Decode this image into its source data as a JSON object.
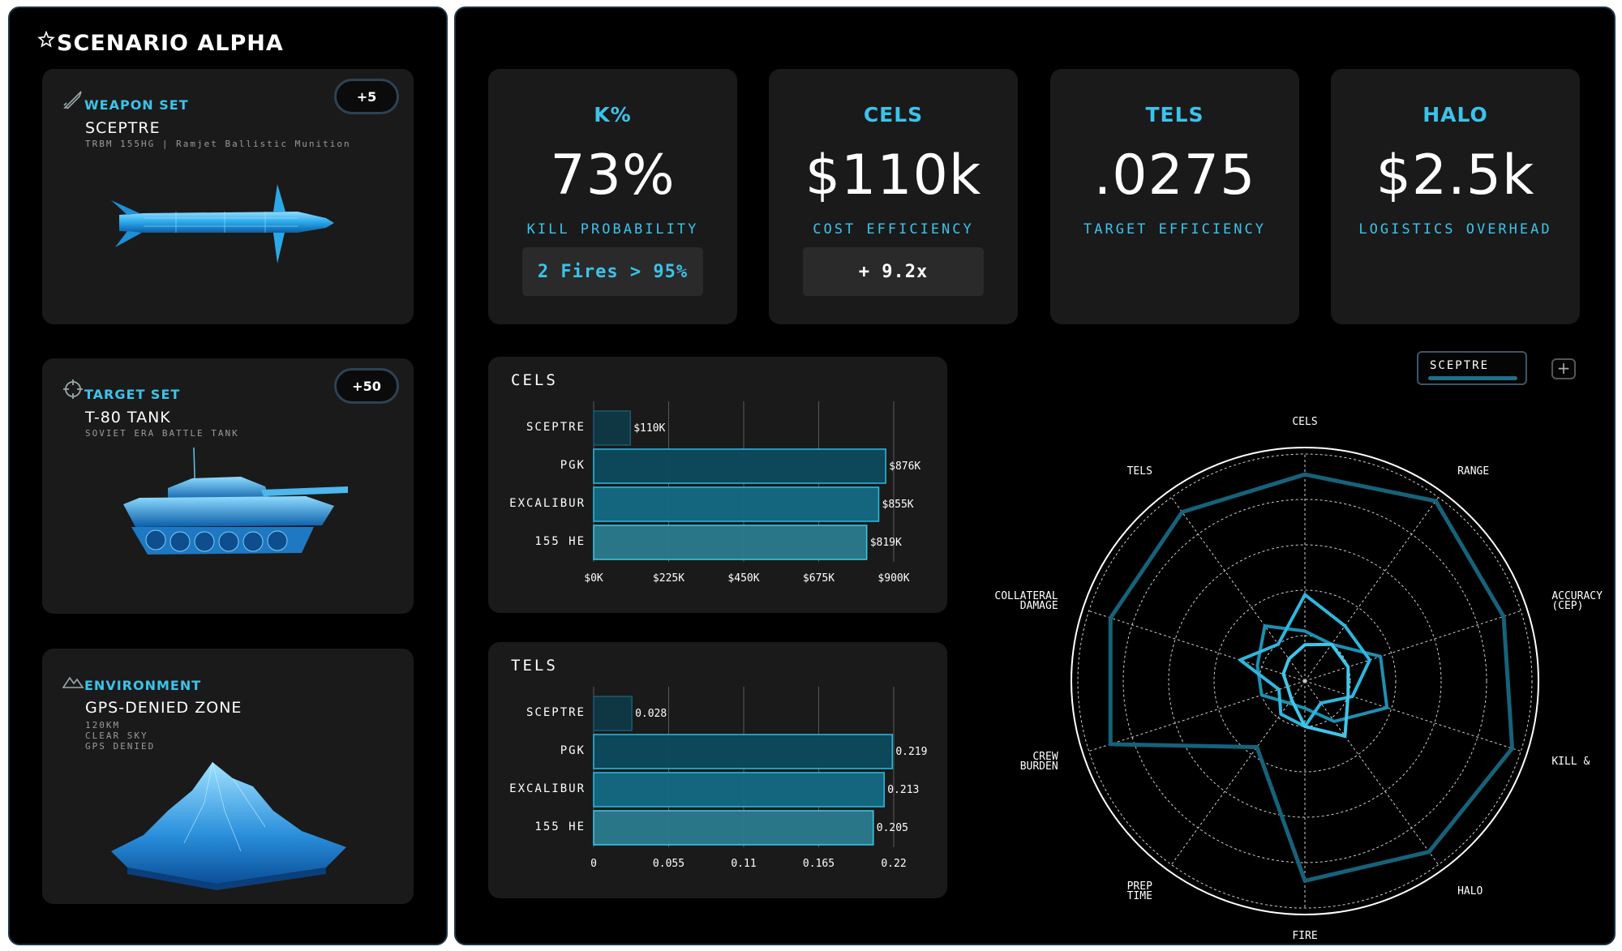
{
  "scenario": {
    "title": "SCENARIO ALPHA",
    "icon": "star-icon"
  },
  "sidebar": {
    "weapon": {
      "label": "WEAPON SET",
      "icon": "missile-icon",
      "badge": "+5",
      "name": "SCEPTRE",
      "sub": "TRBM 155HG | Ramjet Ballistic Munition"
    },
    "target": {
      "label": "TARGET SET",
      "icon": "crosshair-icon",
      "badge": "+50",
      "name": "T-80 TANK",
      "sub": "SOVIET ERA BATTLE TANK"
    },
    "environment": {
      "label": "ENVIRONMENT",
      "icon": "mountain-icon",
      "name": "GPS-DENIED ZONE",
      "sub1": "120KM",
      "sub2": "CLEAR SKY",
      "sub3": "GPS DENIED"
    }
  },
  "stats": [
    {
      "head": "K%",
      "value": "73%",
      "label": "KILL PROBABILITY",
      "chip": "2 Fires > 95%"
    },
    {
      "head": "CELS",
      "value": "$110k",
      "label": "COST EFFICIENCY",
      "chip": "+ 9.2x"
    },
    {
      "head": "TELS",
      "value": ".0275",
      "label": "TARGET EFFICIENCY"
    },
    {
      "head": "HALO",
      "value": "$2.5k",
      "label": "LOGISTICS OVERHEAD"
    }
  ],
  "selector": {
    "value": "SCEPTRE",
    "add": "+"
  },
  "chart_data": [
    {
      "type": "bar",
      "orientation": "horizontal",
      "title": "CELS",
      "categories": [
        "SCEPTRE",
        "PGK",
        "EXCALIBUR",
        "155 HE"
      ],
      "values": [
        110,
        876,
        855,
        819
      ],
      "value_labels": [
        "$110K",
        "$876K",
        "$855K",
        "$819K"
      ],
      "ticks": [
        0,
        225,
        450,
        675,
        900
      ],
      "tick_labels": [
        "$0K",
        "$225K",
        "$450K",
        "$675K",
        "$900K"
      ],
      "xlim": [
        0,
        900
      ],
      "grid": true
    },
    {
      "type": "bar",
      "orientation": "horizontal",
      "title": "TELS",
      "categories": [
        "SCEPTRE",
        "PGK",
        "EXCALIBUR",
        "155 HE"
      ],
      "values": [
        0.028,
        0.219,
        0.213,
        0.205
      ],
      "value_labels": [
        "0.028",
        "0.219",
        "0.213",
        "0.205"
      ],
      "ticks": [
        0,
        0.055,
        0.11,
        0.165,
        0.22
      ],
      "tick_labels": [
        "0",
        "0.055",
        "0.11",
        "0.165",
        "0.22"
      ],
      "xlim": [
        0,
        0.22
      ],
      "grid": true
    },
    {
      "type": "radar",
      "axes": [
        "CELS",
        "RANGE",
        "ACCURACY (CEP)",
        "KILL &",
        "HALO",
        "FIRE TIME",
        "PREP TIME",
        "CREW BURDEN",
        "COLLATERAL DAMAGE",
        "TELS"
      ],
      "rings": 5,
      "series": [
        {
          "values": [
            0.91,
            0.98,
            0.92,
            0.96,
            0.93,
            0.88,
            0.36,
            0.9,
            0.9,
            0.92
          ]
        },
        {
          "values": [
            0.22,
            0.2,
            0.35,
            0.38,
            0.22,
            0.12,
            0.12,
            0.2,
            0.22,
            0.3
          ]
        },
        {
          "values": [
            0.38,
            0.3,
            0.3,
            0.22,
            0.12,
            0.2,
            0.18,
            0.12,
            0.3,
            0.2
          ]
        },
        {
          "values": [
            0.16,
            0.2,
            0.2,
            0.2,
            0.3,
            0.2,
            0.1,
            0.08,
            0.1,
            0.12
          ]
        }
      ],
      "series_colors": [
        "#16627a",
        "#1e8fb0",
        "#2fb6dd",
        "#3fc6ea"
      ]
    }
  ]
}
